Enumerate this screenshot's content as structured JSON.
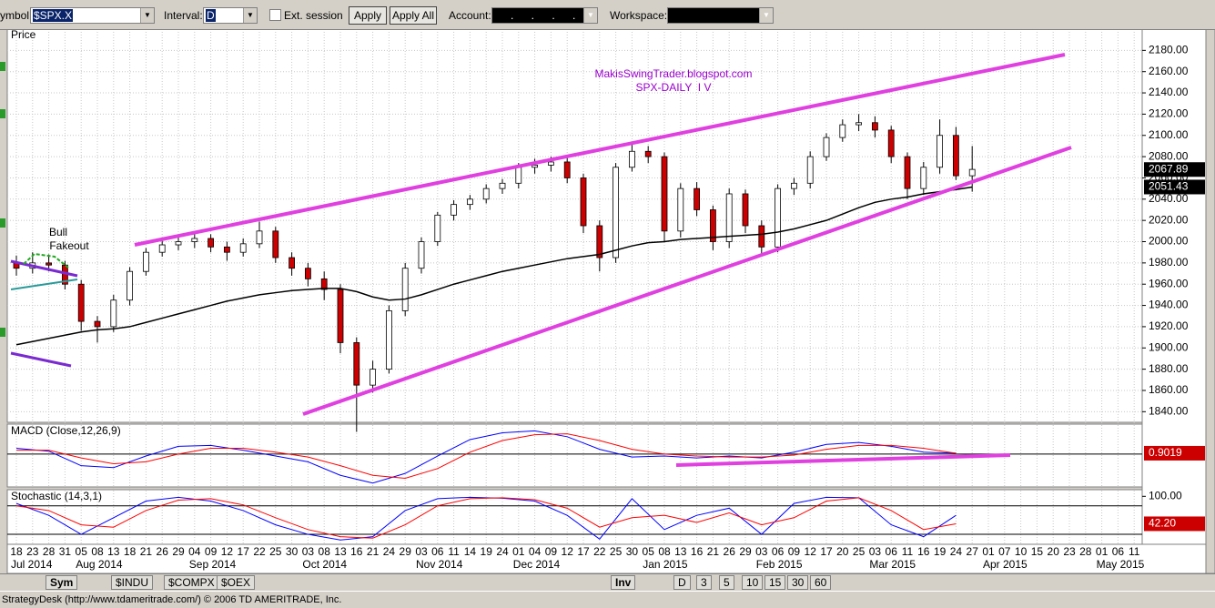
{
  "toolbar": {
    "symbol_label": "ymbol:",
    "symbol": "$SPX.X",
    "interval_label": "Interval:",
    "interval": "D",
    "ext_session": "Ext. session",
    "apply": "Apply",
    "apply_all": "Apply All",
    "account_label": "Account:",
    "account": ". . . .",
    "workspace_label": "Workspace:"
  },
  "chart_data": [
    {
      "type": "candlestick",
      "label": "Price",
      "title": "MakisSwingTrader.blogspot.com",
      "subtitle": "SPX-DAILY  I V",
      "annotations": [
        "Bull",
        "Fakeout"
      ],
      "months": [
        {
          "name": "Jul 2014",
          "days": [
            "18",
            "23",
            "28",
            "31"
          ]
        },
        {
          "name": "Aug 2014",
          "days": [
            "05",
            "08",
            "13",
            "18",
            "21",
            "26",
            "29"
          ]
        },
        {
          "name": "Sep 2014",
          "days": [
            "04",
            "09",
            "12",
            "17",
            "22",
            "25",
            "30"
          ]
        },
        {
          "name": "Oct 2014",
          "days": [
            "03",
            "08",
            "13",
            "16",
            "21",
            "24",
            "29"
          ]
        },
        {
          "name": "Nov 2014",
          "days": [
            "03",
            "06",
            "11",
            "14",
            "19",
            "24"
          ]
        },
        {
          "name": "Dec 2014",
          "days": [
            "01",
            "04",
            "09",
            "12",
            "17",
            "22",
            "25",
            "30"
          ]
        },
        {
          "name": "Jan 2015",
          "days": [
            "05",
            "08",
            "13",
            "16",
            "21",
            "26",
            "29"
          ]
        },
        {
          "name": "Feb 2015",
          "days": [
            "03",
            "06",
            "09",
            "12",
            "17",
            "20",
            "25"
          ]
        },
        {
          "name": "Mar 2015",
          "days": [
            "03",
            "06",
            "11",
            "16",
            "19",
            "24",
            "27"
          ]
        },
        {
          "name": "Apr 2015",
          "days": [
            "01",
            "07",
            "10",
            "15",
            "20",
            "23",
            "28"
          ]
        },
        {
          "name": "May 2015",
          "days": [
            "01",
            "06",
            "11"
          ]
        }
      ],
      "ohlc": [
        [
          1980,
          1987,
          1968,
          1975
        ],
        [
          1975,
          1990,
          1970,
          1980
        ],
        [
          1980,
          1988,
          1972,
          1978
        ],
        [
          1978,
          1982,
          1955,
          1960
        ],
        [
          1960,
          1964,
          1916,
          1925
        ],
        [
          1925,
          1930,
          1905,
          1920
        ],
        [
          1920,
          1950,
          1915,
          1945
        ],
        [
          1945,
          1976,
          1940,
          1972
        ],
        [
          1972,
          1994,
          1968,
          1990
        ],
        [
          1990,
          2001,
          1986,
          1997
        ],
        [
          1997,
          2005,
          1992,
          2000
        ],
        [
          2000,
          2008,
          1994,
          2003
        ],
        [
          2003,
          2007,
          1990,
          1995
        ],
        [
          1995,
          2000,
          1982,
          1990
        ],
        [
          1990,
          2003,
          1986,
          1998
        ],
        [
          1998,
          2019,
          1994,
          2010
        ],
        [
          2010,
          2014,
          1980,
          1985
        ],
        [
          1985,
          1990,
          1968,
          1975
        ],
        [
          1975,
          1980,
          1958,
          1965
        ],
        [
          1965,
          1972,
          1945,
          1955
        ],
        [
          1955,
          1960,
          1895,
          1905
        ],
        [
          1905,
          1910,
          1821,
          1865
        ],
        [
          1865,
          1888,
          1858,
          1880
        ],
        [
          1880,
          1940,
          1876,
          1935
        ],
        [
          1935,
          1980,
          1930,
          1975
        ],
        [
          1975,
          2004,
          1970,
          2000
        ],
        [
          2000,
          2028,
          1996,
          2025
        ],
        [
          2025,
          2039,
          2020,
          2035
        ],
        [
          2035,
          2044,
          2030,
          2040
        ],
        [
          2040,
          2054,
          2036,
          2050
        ],
        [
          2050,
          2059,
          2045,
          2055
        ],
        [
          2055,
          2074,
          2050,
          2070
        ],
        [
          2070,
          2078,
          2064,
          2072
        ],
        [
          2072,
          2080,
          2066,
          2075
        ],
        [
          2075,
          2079,
          2055,
          2060
        ],
        [
          2060,
          2064,
          2008,
          2015
        ],
        [
          2015,
          2020,
          1972,
          1985
        ],
        [
          1985,
          2074,
          1980,
          2070
        ],
        [
          2070,
          2092,
          2066,
          2085
        ],
        [
          2085,
          2090,
          2074,
          2080
        ],
        [
          2080,
          2084,
          2000,
          2010
        ],
        [
          2010,
          2055,
          2004,
          2050
        ],
        [
          2050,
          2056,
          2024,
          2030
        ],
        [
          2030,
          2034,
          1992,
          2000
        ],
        [
          2000,
          2050,
          1994,
          2045
        ],
        [
          2045,
          2049,
          2008,
          2015
        ],
        [
          2015,
          2020,
          1988,
          1995
        ],
        [
          1995,
          2054,
          1990,
          2050
        ],
        [
          2050,
          2060,
          2044,
          2055
        ],
        [
          2055,
          2085,
          2050,
          2080
        ],
        [
          2080,
          2102,
          2076,
          2098
        ],
        [
          2098,
          2115,
          2094,
          2110
        ],
        [
          2110,
          2120,
          2104,
          2112
        ],
        [
          2112,
          2118,
          2098,
          2105
        ],
        [
          2105,
          2109,
          2074,
          2080
        ],
        [
          2080,
          2084,
          2040,
          2050
        ],
        [
          2050,
          2075,
          2044,
          2070
        ],
        [
          2070,
          2115,
          2064,
          2100
        ],
        [
          2100,
          2108,
          2058,
          2062
        ],
        [
          2062,
          2090,
          2047,
          2068
        ]
      ],
      "up_color": "#ffffff",
      "down_color": "#cc0000",
      "moving_average": {
        "color": "#000000",
        "values": [
          1903,
          1906,
          1909,
          1912,
          1915,
          1917,
          1918,
          1920,
          1924,
          1928,
          1932,
          1936,
          1940,
          1944,
          1947,
          1950,
          1952,
          1954,
          1955,
          1956,
          1956,
          1953,
          1948,
          1945,
          1946,
          1950,
          1955,
          1960,
          1964,
          1968,
          1972,
          1975,
          1978,
          1981,
          1984,
          1986,
          1988,
          1992,
          1996,
          1999,
          2000,
          2002,
          2003,
          2004,
          2005,
          2006,
          2007,
          2009,
          2012,
          2016,
          2020,
          2026,
          2032,
          2037,
          2040,
          2042,
          2045,
          2047,
          2049,
          2051.43
        ]
      },
      "ylim": [
        1830,
        2200
      ],
      "yticks": [
        {
          "value": 1840,
          "label": "1840.00"
        },
        {
          "value": 1860,
          "label": "1860.00"
        },
        {
          "value": 1880,
          "label": "1880.00"
        },
        {
          "value": 1900,
          "label": "1900.00"
        },
        {
          "value": 1920,
          "label": "1920.00"
        },
        {
          "value": 1940,
          "label": "1940.00"
        },
        {
          "value": 1960,
          "label": "1960.00"
        },
        {
          "value": 1980,
          "label": "1980.00"
        },
        {
          "value": 2000,
          "label": "2000.00"
        },
        {
          "value": 2020,
          "label": "2020.00"
        },
        {
          "value": 2040,
          "label": "2040.00"
        },
        {
          "value": 2060,
          "label": "2060.00"
        },
        {
          "value": 2080,
          "label": "2080.00"
        },
        {
          "value": 2100,
          "label": "2100.00"
        },
        {
          "value": 2120,
          "label": "2120.00"
        },
        {
          "value": 2140,
          "label": "2140.00"
        },
        {
          "value": 2160,
          "label": "2160.00"
        },
        {
          "value": 2180,
          "label": "2180.00"
        }
      ],
      "price_tags": [
        2067.89,
        2051.43
      ],
      "grid": true
    },
    {
      "type": "line",
      "label": "MACD (Close,12,26,9)",
      "series": [
        {
          "color": "#0000ff",
          "values": [
            6,
            3,
            -12,
            -14,
            -2,
            8,
            9,
            4,
            -2,
            -8,
            -22,
            -30,
            -20,
            -2,
            15,
            22,
            24,
            18,
            5,
            -3,
            -2,
            -4,
            -2,
            -4,
            2,
            10,
            12,
            8,
            2,
            1
          ]
        },
        {
          "color": "#ff0000",
          "values": [
            4,
            4,
            -4,
            -10,
            -8,
            0,
            6,
            6,
            2,
            -3,
            -12,
            -22,
            -25,
            -15,
            2,
            14,
            20,
            21,
            14,
            5,
            0,
            -2,
            -3,
            -3,
            -1,
            5,
            9,
            9,
            6,
            0.9019
          ]
        }
      ],
      "ylim": [
        -34,
        31
      ],
      "reference_lines": [
        0
      ],
      "value_tag": 0.9019
    },
    {
      "type": "line",
      "label": "Stochastic (14,3,1)",
      "series": [
        {
          "color": "#0000ff",
          "values": [
            85,
            60,
            20,
            55,
            90,
            98,
            90,
            70,
            40,
            20,
            8,
            15,
            70,
            95,
            98,
            96,
            90,
            60,
            10,
            95,
            30,
            60,
            75,
            20,
            85,
            98,
            97,
            40,
            15,
            60
          ]
        },
        {
          "color": "#ff0000",
          "values": [
            80,
            70,
            40,
            35,
            70,
            92,
            95,
            82,
            55,
            30,
            15,
            12,
            40,
            80,
            95,
            97,
            93,
            75,
            35,
            55,
            60,
            45,
            65,
            40,
            55,
            90,
            97,
            70,
            30,
            42.2
          ]
        }
      ],
      "ylim": [
        -1,
        114
      ],
      "yticks": [
        {
          "value": 100,
          "label": "100.00"
        }
      ],
      "reference_lines": [
        20,
        80
      ],
      "value_tag": {
        "value": 42.2,
        "label": "42.20"
      }
    }
  ],
  "tabs": {
    "sym": "Sym",
    "symbols": [
      "$INDU",
      "$COMPX",
      "$OEX"
    ],
    "inv": "Inv",
    "intervals": [
      "D",
      "3",
      "5",
      "10",
      "15",
      "30",
      "60"
    ]
  },
  "status": "StrategyDesk (http://www.tdameritrade.com/) © 2006 TD AMERITRADE, Inc."
}
